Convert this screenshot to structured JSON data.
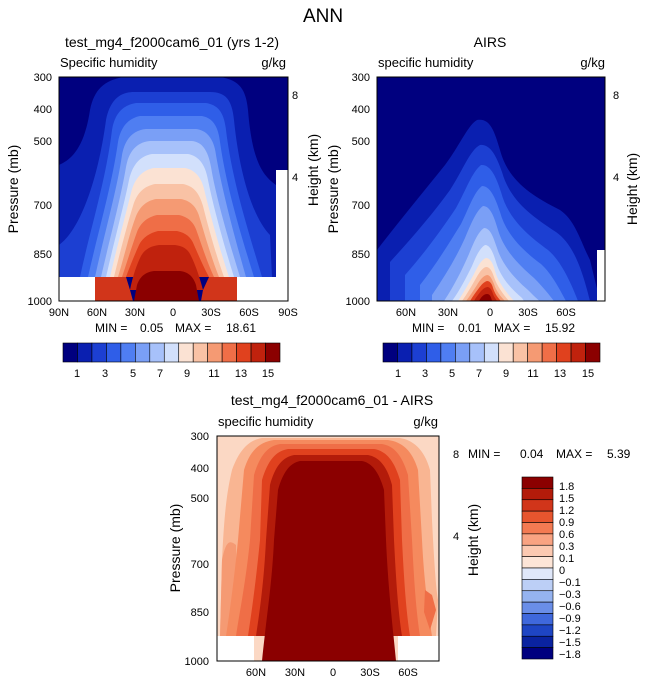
{
  "figure_title": "ANN",
  "chart_data": [
    {
      "type": "contour",
      "id": "p1",
      "title": "test_mg4_f2000cam6_01 (yrs 1-2)",
      "left_label": "Specific humidity",
      "right_label": "g/kg",
      "xlabel": "",
      "ylabel": "Pressure (mb)",
      "ylabel_right": "Height (km)",
      "x_ticks": [
        "90N",
        "60N",
        "30N",
        "0",
        "30S",
        "60S",
        "90S"
      ],
      "y_ticks": [
        "300",
        "400",
        "500",
        "700",
        "850",
        "1000"
      ],
      "y_right_ticks": [
        "8",
        "4"
      ],
      "stats": {
        "min_label": "MIN =",
        "min": "0.05",
        "max_label": "MAX =",
        "max": "18.61"
      },
      "colorbar": {
        "colors": [
          "#00007f",
          "#0a1fb0",
          "#1c3fd2",
          "#2f5ee8",
          "#4f7ef2",
          "#7a9ff6",
          "#a7c1fa",
          "#d2e0fc",
          "#fbe2d3",
          "#f9c2a5",
          "#f59a73",
          "#ef6e47",
          "#e0411e",
          "#c0220d",
          "#8b0000"
        ],
        "labels": [
          "1",
          "3",
          "5",
          "7",
          "9",
          "11",
          "13",
          "15"
        ]
      }
    },
    {
      "type": "contour",
      "id": "p2",
      "title": "AIRS",
      "left_label": "specific humidity",
      "right_label": "g/kg",
      "xlabel": "",
      "ylabel": "Pressure (mb)",
      "ylabel_right": "Height (km)",
      "x_ticks": [
        "60N",
        "30N",
        "0",
        "30S",
        "60S"
      ],
      "y_ticks": [
        "300",
        "400",
        "500",
        "700",
        "850",
        "1000"
      ],
      "y_right_ticks": [
        "8",
        "4"
      ],
      "stats": {
        "min_label": "MIN =",
        "min": "0.01",
        "max_label": "MAX =",
        "max": "15.92"
      },
      "colorbar": {
        "colors": [
          "#00007f",
          "#0a1fb0",
          "#1c3fd2",
          "#2f5ee8",
          "#4f7ef2",
          "#7a9ff6",
          "#a7c1fa",
          "#d2e0fc",
          "#fbe2d3",
          "#f9c2a5",
          "#f59a73",
          "#ef6e47",
          "#e0411e",
          "#c0220d",
          "#8b0000"
        ],
        "labels": [
          "1",
          "3",
          "5",
          "7",
          "9",
          "11",
          "13",
          "15"
        ]
      }
    },
    {
      "type": "contour",
      "id": "p3",
      "title": "test_mg4_f2000cam6_01 - AIRS",
      "left_label": "specific humidity",
      "right_label": "g/kg",
      "xlabel": "",
      "ylabel": "Pressure (mb)",
      "ylabel_right": "Height (km)",
      "x_ticks": [
        "60N",
        "30N",
        "0",
        "30S",
        "60S"
      ],
      "y_ticks": [
        "300",
        "400",
        "500",
        "700",
        "850",
        "1000"
      ],
      "y_right_ticks": [
        "8",
        "4"
      ],
      "stats": {
        "min_label": "MIN =",
        "min": "0.04",
        "max_label": "MAX =",
        "max": "5.39"
      },
      "colorbar": {
        "colors": [
          "#8b0000",
          "#b31b0a",
          "#d1351a",
          "#e7552e",
          "#f37a52",
          "#f9a382",
          "#fcc9b1",
          "#fde5d7",
          "#e0e8fa",
          "#bccff6",
          "#95b3f0",
          "#6a8ee8",
          "#3f68dc",
          "#1e45c4",
          "#0a23a0",
          "#00007f"
        ],
        "labels": [
          "1.8",
          "1.5",
          "1.2",
          "0.9",
          "0.6",
          "0.3",
          "0.1",
          "0",
          "−0.1",
          "−0.3",
          "−0.6",
          "−0.9",
          "−1.2",
          "−1.5",
          "−1.8"
        ]
      }
    }
  ]
}
